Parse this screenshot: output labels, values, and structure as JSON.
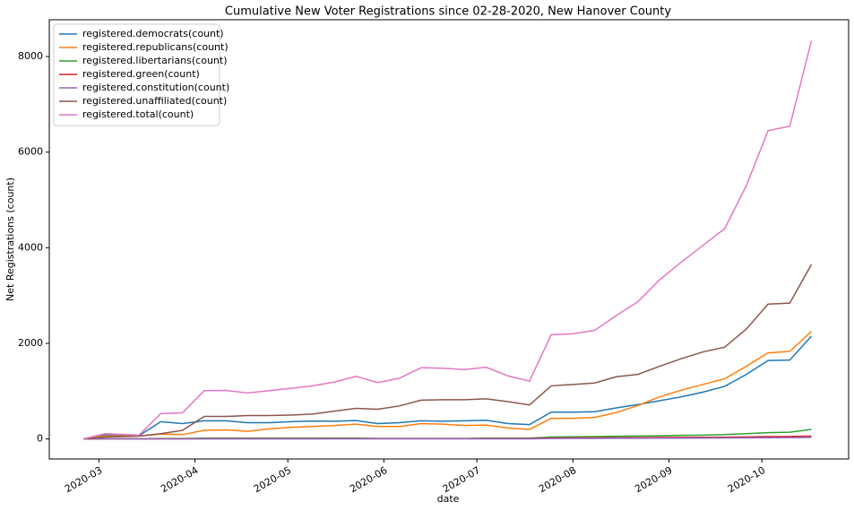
{
  "chart_data": {
    "type": "line",
    "title": "Cumulative New Voter Registrations since 02-28-2020, New Hanover County",
    "xlabel": "date",
    "ylabel": "Net Registrations (count)",
    "x": [
      "2020-02-25",
      "2020-03-03",
      "2020-03-14",
      "2020-03-21",
      "2020-03-28",
      "2020-04-04",
      "2020-04-11",
      "2020-04-18",
      "2020-04-25",
      "2020-05-02",
      "2020-05-09",
      "2020-05-16",
      "2020-05-23",
      "2020-05-30",
      "2020-06-06",
      "2020-06-13",
      "2020-06-20",
      "2020-06-27",
      "2020-07-04",
      "2020-07-11",
      "2020-07-18",
      "2020-07-25",
      "2020-08-01",
      "2020-08-08",
      "2020-08-15",
      "2020-08-22",
      "2020-08-29",
      "2020-09-05",
      "2020-09-12",
      "2020-09-19",
      "2020-09-26",
      "2020-10-03",
      "2020-10-10",
      "2020-10-17"
    ],
    "xlim": [
      "2020-02-14",
      "2020-10-29"
    ],
    "xticks": [
      {
        "value": "2020-03-01",
        "label": "2020-03"
      },
      {
        "value": "2020-04-01",
        "label": "2020-04"
      },
      {
        "value": "2020-05-01",
        "label": "2020-05"
      },
      {
        "value": "2020-06-01",
        "label": "2020-06"
      },
      {
        "value": "2020-07-01",
        "label": "2020-07"
      },
      {
        "value": "2020-08-01",
        "label": "2020-08"
      },
      {
        "value": "2020-09-01",
        "label": "2020-09"
      },
      {
        "value": "2020-10-01",
        "label": "2020-10"
      }
    ],
    "ylim": [
      -420,
      8770
    ],
    "yticks": [
      0,
      2000,
      4000,
      6000,
      8000
    ],
    "legend": "upper left",
    "series": [
      {
        "name": "registered.democrats(count)",
        "color": "#1f77b4",
        "values": [
          0,
          90,
          70,
          360,
          320,
          380,
          380,
          340,
          340,
          360,
          375,
          370,
          385,
          320,
          340,
          380,
          370,
          380,
          390,
          320,
          300,
          560,
          560,
          570,
          650,
          720,
          800,
          880,
          980,
          1100,
          1350,
          1640,
          1650,
          2150
        ]
      },
      {
        "name": "registered.republicans(count)",
        "color": "#ff7f0e",
        "values": [
          0,
          60,
          60,
          100,
          90,
          180,
          190,
          160,
          210,
          240,
          260,
          280,
          310,
          260,
          260,
          320,
          310,
          280,
          290,
          230,
          200,
          430,
          430,
          450,
          550,
          700,
          880,
          1020,
          1140,
          1260,
          1520,
          1800,
          1830,
          2250
        ]
      },
      {
        "name": "registered.libertarians(count)",
        "color": "#2ca02c",
        "values": [
          0,
          5,
          5,
          10,
          10,
          15,
          15,
          15,
          15,
          15,
          15,
          15,
          15,
          10,
          10,
          10,
          10,
          10,
          15,
          15,
          15,
          40,
          45,
          50,
          55,
          60,
          65,
          75,
          80,
          90,
          110,
          130,
          140,
          200
        ]
      },
      {
        "name": "registered.green(count)",
        "color": "#d62728",
        "values": [
          0,
          2,
          2,
          3,
          3,
          5,
          5,
          5,
          5,
          5,
          5,
          6,
          6,
          6,
          6,
          7,
          7,
          7,
          8,
          8,
          8,
          20,
          22,
          24,
          26,
          28,
          30,
          32,
          35,
          38,
          42,
          48,
          52,
          60
        ]
      },
      {
        "name": "registered.constitution(count)",
        "color": "#9467bd",
        "values": [
          0,
          1,
          1,
          1,
          1,
          2,
          2,
          2,
          2,
          2,
          2,
          2,
          2,
          2,
          2,
          3,
          3,
          3,
          3,
          3,
          3,
          10,
          11,
          12,
          13,
          14,
          15,
          16,
          18,
          20,
          22,
          25,
          27,
          30
        ]
      },
      {
        "name": "registered.unaffiliated(count)",
        "color": "#8c564b",
        "values": [
          0,
          40,
          60,
          110,
          180,
          470,
          470,
          490,
          490,
          500,
          520,
          580,
          640,
          620,
          690,
          810,
          820,
          820,
          840,
          780,
          710,
          1110,
          1140,
          1170,
          1300,
          1350,
          1520,
          1680,
          1820,
          1920,
          2300,
          2820,
          2840,
          3650
        ]
      },
      {
        "name": "registered.total(count)",
        "color": "#e377c2",
        "values": [
          0,
          110,
          80,
          530,
          545,
          1010,
          1015,
          960,
          1010,
          1060,
          1110,
          1190,
          1310,
          1180,
          1270,
          1490,
          1480,
          1450,
          1500,
          1320,
          1210,
          2180,
          2200,
          2270,
          2580,
          2870,
          3330,
          3700,
          4050,
          4400,
          5300,
          6450,
          6540,
          8330
        ]
      }
    ]
  }
}
